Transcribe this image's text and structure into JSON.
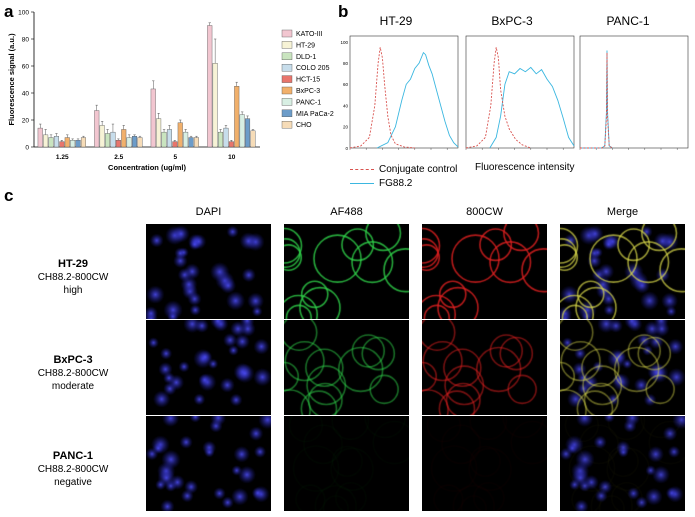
{
  "panels": {
    "a": "a",
    "b": "b",
    "c": "c"
  },
  "chart_data": [
    {
      "type": "bar",
      "panel": "a",
      "xlabel": "Concentration  (ug/ml)",
      "ylabel": "Fluorescence signal  (a.u.)",
      "categories": [
        "1.25",
        "2.5",
        "5",
        "10"
      ],
      "ylim": [
        0,
        100
      ],
      "yticks": [
        0,
        20,
        40,
        60,
        80,
        100
      ],
      "legend_position": "right",
      "series": [
        {
          "name": "KATO-III",
          "color": "#f2c6d0",
          "values": [
            14,
            27,
            43,
            90
          ],
          "errors": [
            3,
            4,
            6,
            2
          ]
        },
        {
          "name": "HT-29",
          "color": "#f7f3d6",
          "values": [
            9,
            16,
            21,
            62
          ],
          "errors": [
            4,
            3,
            4,
            18
          ]
        },
        {
          "name": "DLD-1",
          "color": "#c9e4bf",
          "values": [
            7,
            10,
            11,
            11
          ],
          "errors": [
            2,
            3,
            2,
            2
          ]
        },
        {
          "name": "COLO 205",
          "color": "#c7ddeb",
          "values": [
            8,
            11,
            13,
            14
          ],
          "errors": [
            2,
            6,
            3,
            2
          ]
        },
        {
          "name": "HCT-15",
          "color": "#e8756c",
          "values": [
            4,
            5,
            4,
            4
          ],
          "errors": [
            1,
            1,
            1,
            1
          ]
        },
        {
          "name": "BxPC-3",
          "color": "#f1b06b",
          "values": [
            7,
            13,
            18,
            45
          ],
          "errors": [
            2,
            3,
            2,
            3
          ]
        },
        {
          "name": "PANC-1",
          "color": "#d8efe3",
          "values": [
            5,
            7,
            11,
            24
          ],
          "errors": [
            1,
            2,
            2,
            2
          ]
        },
        {
          "name": "MIA PaCa-2",
          "color": "#6c9cc9",
          "values": [
            5,
            8,
            7,
            21
          ],
          "errors": [
            1,
            1,
            1,
            2
          ]
        },
        {
          "name": "CHO",
          "color": "#f6dcb8",
          "values": [
            7,
            7,
            7,
            12
          ],
          "errors": [
            1,
            1,
            1,
            1
          ]
        }
      ]
    },
    {
      "type": "line",
      "panel": "b",
      "xlabel": "Fluorescence intensity",
      "ylim": [
        0,
        100
      ],
      "yticks": [
        0,
        20,
        40,
        60,
        80,
        100
      ],
      "series_names": [
        "Conjugate control",
        "FG88.2"
      ],
      "series_colors": [
        "#d9534f",
        "#3bb7e0"
      ],
      "histograms": [
        {
          "name": "HT-29",
          "control": [
            [
              0,
              0
            ],
            [
              1.0,
              2
            ],
            [
              1.8,
              10
            ],
            [
              2.3,
              40
            ],
            [
              2.6,
              80
            ],
            [
              2.8,
              95
            ],
            [
              3.0,
              85
            ],
            [
              3.2,
              60
            ],
            [
              3.5,
              30
            ],
            [
              3.8,
              12
            ],
            [
              4.2,
              4
            ],
            [
              5,
              1
            ],
            [
              6,
              0
            ]
          ],
          "stain": [
            [
              2.5,
              0
            ],
            [
              3.5,
              5
            ],
            [
              4.2,
              20
            ],
            [
              4.8,
              45
            ],
            [
              5.2,
              60
            ],
            [
              5.6,
              65
            ],
            [
              6.0,
              75
            ],
            [
              6.4,
              80
            ],
            [
              6.8,
              90
            ],
            [
              7.0,
              88
            ],
            [
              7.3,
              78
            ],
            [
              7.6,
              70
            ],
            [
              8.0,
              55
            ],
            [
              8.4,
              40
            ],
            [
              8.8,
              25
            ],
            [
              9.2,
              12
            ],
            [
              9.6,
              5
            ],
            [
              10,
              1
            ]
          ]
        },
        {
          "name": "BxPC-3",
          "control": [
            [
              0,
              0
            ],
            [
              1.0,
              2
            ],
            [
              1.8,
              10
            ],
            [
              2.3,
              40
            ],
            [
              2.6,
              80
            ],
            [
              2.8,
              95
            ],
            [
              3.0,
              85
            ],
            [
              3.2,
              55
            ],
            [
              3.6,
              30
            ],
            [
              4.0,
              18
            ],
            [
              4.6,
              8
            ],
            [
              5.2,
              3
            ],
            [
              6,
              0
            ]
          ],
          "stain": [
            [
              2.2,
              0
            ],
            [
              2.8,
              10
            ],
            [
              3.2,
              30
            ],
            [
              3.6,
              60
            ],
            [
              4.0,
              72
            ],
            [
              4.5,
              70
            ],
            [
              5.0,
              75
            ],
            [
              5.5,
              72
            ],
            [
              6.0,
              76
            ],
            [
              6.5,
              70
            ],
            [
              7.0,
              74
            ],
            [
              7.5,
              65
            ],
            [
              8.0,
              58
            ],
            [
              8.5,
              45
            ],
            [
              9.0,
              28
            ],
            [
              9.5,
              10
            ],
            [
              10,
              2
            ]
          ]
        },
        {
          "name": "PANC-1",
          "control": [
            [
              0,
              0
            ],
            [
              2.0,
              0
            ],
            [
              2.3,
              2
            ],
            [
              2.45,
              30
            ],
            [
              2.5,
              90
            ],
            [
              2.55,
              30
            ],
            [
              2.7,
              2
            ],
            [
              3,
              0
            ]
          ],
          "stain": [
            [
              0,
              0
            ],
            [
              2.0,
              0
            ],
            [
              2.3,
              2
            ],
            [
              2.45,
              35
            ],
            [
              2.5,
              92
            ],
            [
              2.55,
              35
            ],
            [
              2.7,
              2
            ],
            [
              3,
              0
            ]
          ]
        }
      ]
    }
  ],
  "microscopy": {
    "columns": [
      "DAPI",
      "AF488",
      "800CW",
      "Merge"
    ],
    "rows": [
      {
        "cell_line": "HT-29",
        "conjugate": "CH88.2-800CW",
        "level": "high"
      },
      {
        "cell_line": "BxPC-3",
        "conjugate": "CH88.2-800CW",
        "level": "moderate"
      },
      {
        "cell_line": "PANC-1",
        "conjugate": "CH88.2-800CW",
        "level": "negative"
      }
    ],
    "channel_colors": {
      "dapi": "#3a3ad6",
      "af488": "#2fd24a",
      "cw800": "#e02020"
    },
    "signal_level": [
      1.0,
      0.65,
      0.04
    ]
  }
}
